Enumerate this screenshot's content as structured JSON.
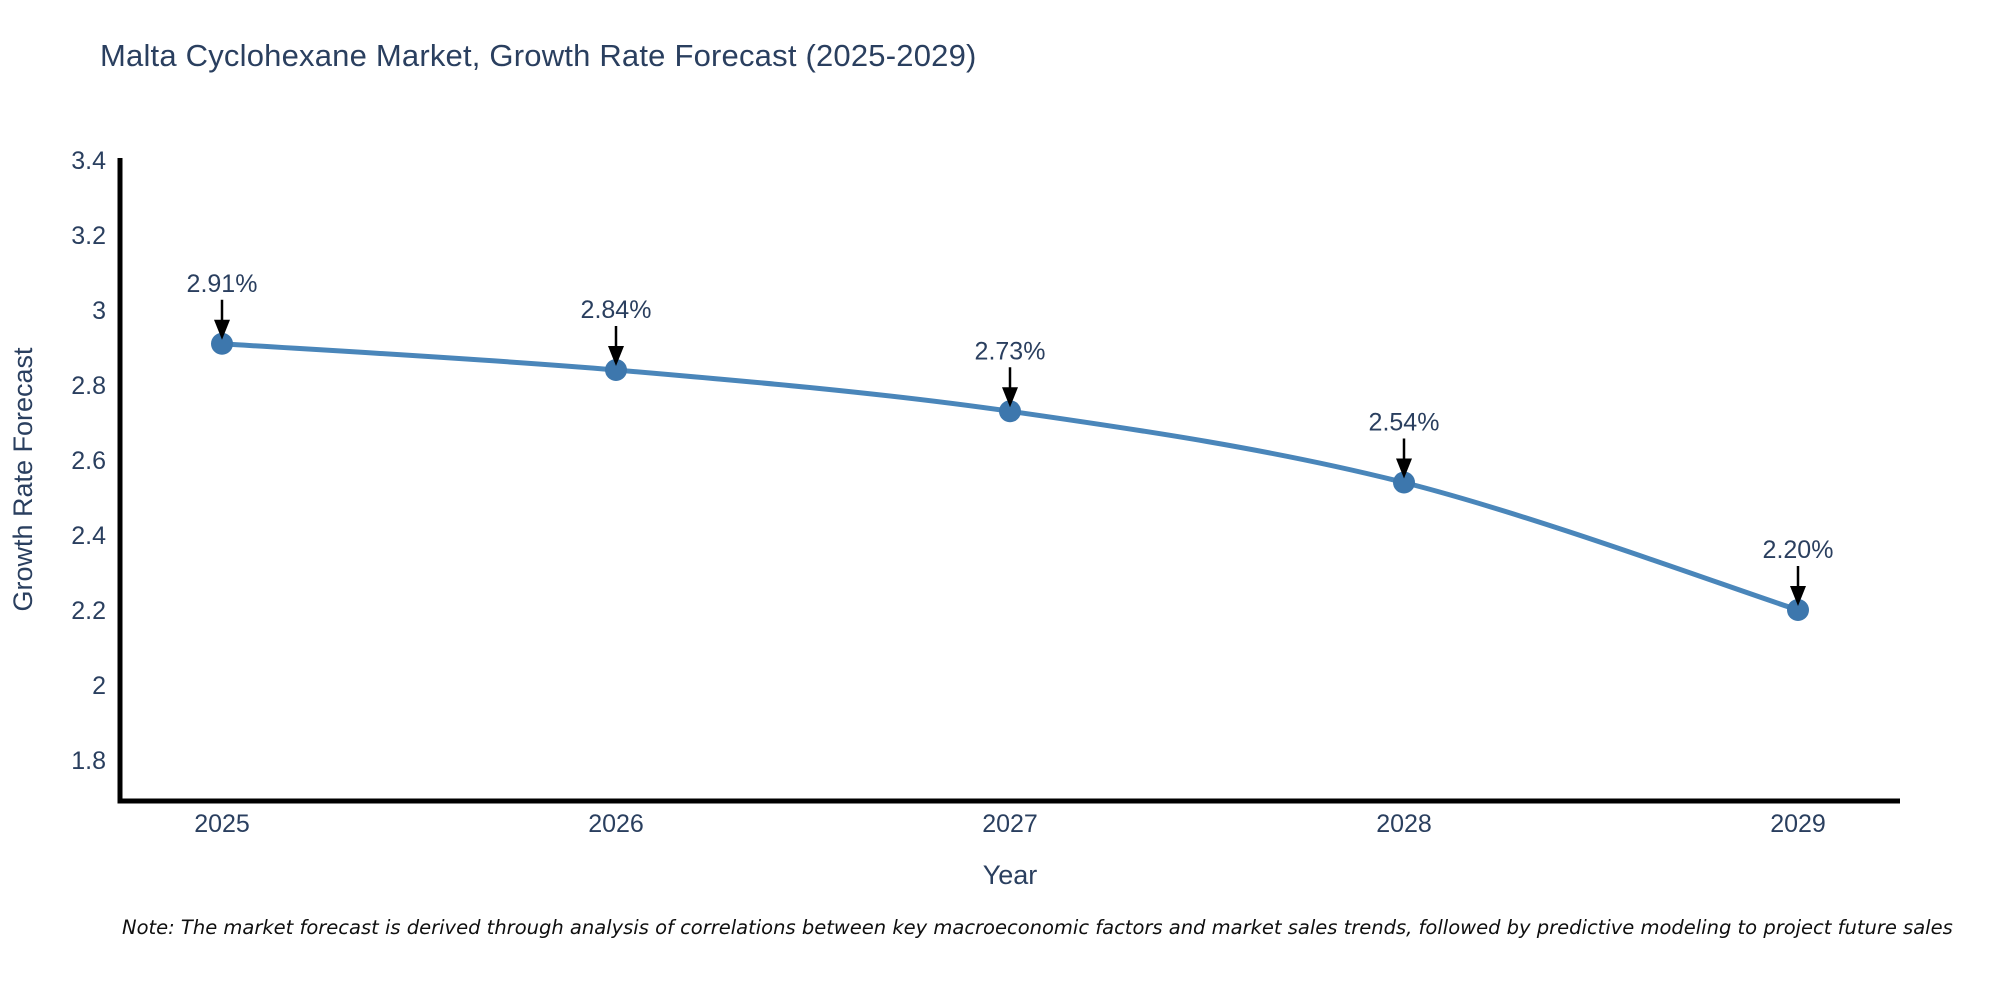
{
  "title": "Malta Cyclohexane Market, Growth Rate Forecast (2025-2029)",
  "note": "Note: The market forecast is derived through analysis of correlations between key macroeconomic factors and market sales trends, followed by predictive modeling to project future sales",
  "chart_data": {
    "type": "line",
    "title": "Malta Cyclohexane Market, Growth Rate Forecast (2025-2029)",
    "xlabel": "Year",
    "ylabel": "Growth Rate Forecast",
    "categories": [
      "2025",
      "2026",
      "2027",
      "2028",
      "2029"
    ],
    "series": [
      {
        "name": "Growth Rate Forecast",
        "values": [
          2.91,
          2.84,
          2.73,
          2.54,
          2.2
        ]
      }
    ],
    "point_labels": [
      "2.91%",
      "2.84%",
      "2.73%",
      "2.54%",
      "2.20%"
    ],
    "yticks": [
      3.4,
      3.2,
      3.0,
      2.8,
      2.6,
      2.4,
      2.2,
      2.0,
      1.8
    ],
    "ylim": [
      1.69,
      3.4
    ],
    "grid": false,
    "legend": "none",
    "line_shape": "spline",
    "colors": {
      "line": "#4a86ba",
      "marker": "#3d77ad",
      "axis": "#000000",
      "text": "#2a3f5f",
      "arrow": "#000000",
      "background": "#ffffff"
    }
  }
}
